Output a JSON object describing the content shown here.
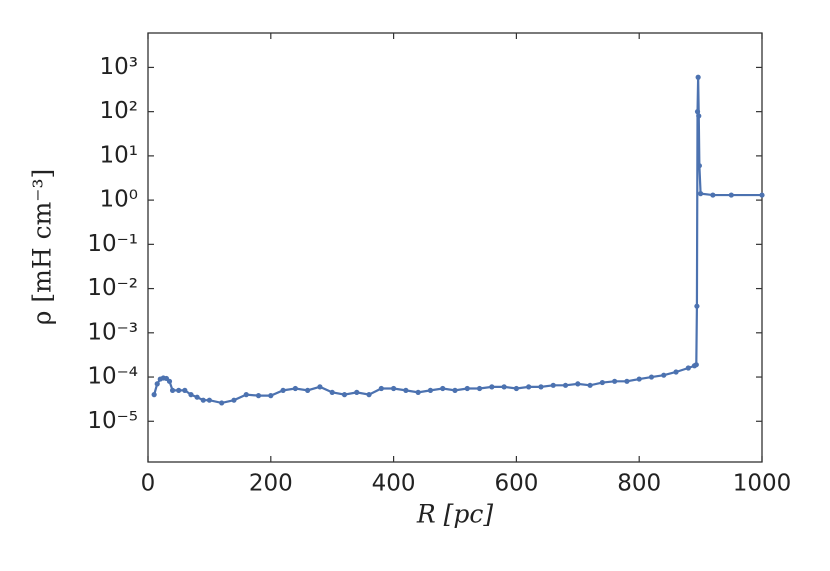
{
  "chart_data": {
    "type": "line",
    "xlabel": "R [pc]",
    "ylabel": "ρ [mH cm⁻³]",
    "log_y": true,
    "color": "#4c72b0",
    "x": [
      10,
      15,
      20,
      25,
      30,
      35,
      40,
      50,
      60,
      70,
      80,
      90,
      100,
      120,
      140,
      160,
      180,
      200,
      220,
      240,
      260,
      280,
      300,
      320,
      340,
      360,
      380,
      400,
      420,
      440,
      460,
      480,
      500,
      520,
      540,
      560,
      580,
      600,
      620,
      640,
      660,
      680,
      700,
      720,
      740,
      760,
      780,
      800,
      820,
      840,
      860,
      880,
      890,
      893,
      894,
      895,
      896,
      897,
      898,
      900,
      920,
      950,
      1000
    ],
    "values": [
      4e-05,
      7e-05,
      9e-05,
      9.5e-05,
      9.3e-05,
      8e-05,
      5e-05,
      5e-05,
      5e-05,
      4e-05,
      3.5e-05,
      3e-05,
      3e-05,
      2.6e-05,
      3e-05,
      4e-05,
      3.8e-05,
      3.8e-05,
      5e-05,
      5.5e-05,
      5e-05,
      6e-05,
      4.5e-05,
      4e-05,
      4.5e-05,
      4e-05,
      5.5e-05,
      5.5e-05,
      5e-05,
      4.5e-05,
      5e-05,
      5.5e-05,
      5e-05,
      5.5e-05,
      5.5e-05,
      6e-05,
      6e-05,
      5.5e-05,
      6e-05,
      6e-05,
      6.5e-05,
      6.5e-05,
      7e-05,
      6.5e-05,
      7.5e-05,
      8e-05,
      8e-05,
      9e-05,
      0.0001,
      0.00011,
      0.00013,
      0.00016,
      0.00018,
      0.00019,
      0.004,
      100,
      600,
      80,
      6,
      1.4,
      1.3,
      1.3,
      1.3
    ],
    "xlim": [
      0,
      1000
    ],
    "xticks": [
      0,
      200,
      400,
      600,
      800,
      1000
    ],
    "ylim": [
      1.2e-06,
      6000
    ],
    "yticks": [
      {
        "value": 1e-05,
        "label": "10⁻⁵"
      },
      {
        "value": 0.0001,
        "label": "10⁻⁴"
      },
      {
        "value": 0.001,
        "label": "10⁻³"
      },
      {
        "value": 0.01,
        "label": "10⁻²"
      },
      {
        "value": 0.1,
        "label": "10⁻¹"
      },
      {
        "value": 1,
        "label": "10⁰"
      },
      {
        "value": 10,
        "label": "10¹"
      },
      {
        "value": 100,
        "label": "10²"
      },
      {
        "value": 1000,
        "label": "10³"
      }
    ]
  }
}
